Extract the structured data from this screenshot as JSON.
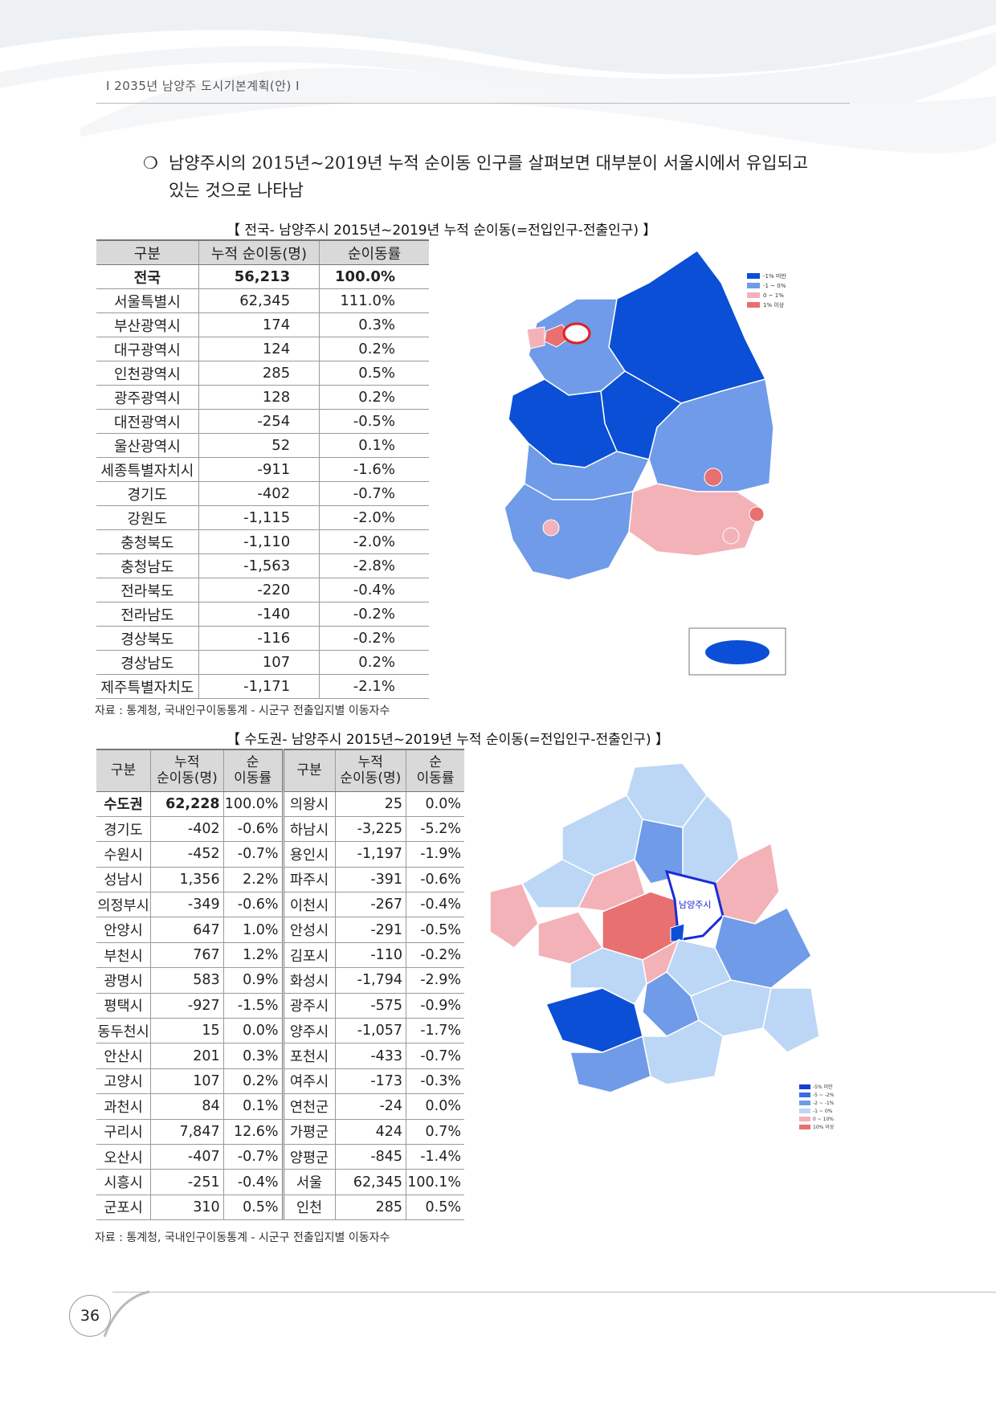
{
  "header": {
    "text": "Ⅰ 2035년 남양주 도시기본계획(안) Ⅰ"
  },
  "intro": {
    "bullet": "❍",
    "line1": "남양주시의 2015년~2019년 누적 순이동 인구를 살펴보면 대부분이 서울시에서 유입되고",
    "line2": "있는 것으로 나타남"
  },
  "national": {
    "caption": "【 전국- 남양주시 2015년~2019년 누적 순이동(=전입인구-전출인구) 】",
    "headers": [
      "구분",
      "누적 순이동(명)",
      "순이동률"
    ],
    "rows": [
      [
        "전국",
        "56,213",
        "100.0%"
      ],
      [
        "서울특별시",
        "62,345",
        "111.0%"
      ],
      [
        "부산광역시",
        "174",
        "0.3%"
      ],
      [
        "대구광역시",
        "124",
        "0.2%"
      ],
      [
        "인천광역시",
        "285",
        "0.5%"
      ],
      [
        "광주광역시",
        "128",
        "0.2%"
      ],
      [
        "대전광역시",
        "-254",
        "-0.5%"
      ],
      [
        "울산광역시",
        "52",
        "0.1%"
      ],
      [
        "세종특별자치시",
        "-911",
        "-1.6%"
      ],
      [
        "경기도",
        "-402",
        "-0.7%"
      ],
      [
        "강원도",
        "-1,115",
        "-2.0%"
      ],
      [
        "충청북도",
        "-1,110",
        "-2.0%"
      ],
      [
        "충청남도",
        "-1,563",
        "-2.8%"
      ],
      [
        "전라북도",
        "-220",
        "-0.4%"
      ],
      [
        "전라남도",
        "-140",
        "-0.2%"
      ],
      [
        "경상북도",
        "-116",
        "-0.2%"
      ],
      [
        "경상남도",
        "107",
        "0.2%"
      ],
      [
        "제주특별자치도",
        "-1,171",
        "-2.1%"
      ]
    ],
    "source": "자료 : 통계청, 국내인구이동통계 - 시군구 전출입지별 이동자수",
    "map_legend": [
      "-1% 미만",
      "-1 ~ 0%",
      "0 ~ 1%",
      "1% 이상"
    ],
    "map_colors": {
      "dark": "#0b4fd6",
      "mid": "#6f9be8",
      "light": "#a9c6f2",
      "pink": "#f3b2b8",
      "red": "#e87070"
    }
  },
  "capital": {
    "caption": "【 수도권- 남양주시 2015년~2019년 누적 순이동(=전입인구-전출인구) 】",
    "headers": [
      "구분",
      "누적\n순이동(명)",
      "순\n이동률",
      "구분",
      "누적\n순이동(명)",
      "순\n이동률"
    ],
    "h_name": "구분",
    "h_count_1": "누적",
    "h_count_2": "순이동(명)",
    "h_rate_1": "순",
    "h_rate_2": "이동률",
    "rows": [
      [
        "수도권",
        "62,228",
        "100.0%",
        "의왕시",
        "25",
        "0.0%"
      ],
      [
        "경기도",
        "-402",
        "-0.6%",
        "하남시",
        "-3,225",
        "-5.2%"
      ],
      [
        "수원시",
        "-452",
        "-0.7%",
        "용인시",
        "-1,197",
        "-1.9%"
      ],
      [
        "성남시",
        "1,356",
        "2.2%",
        "파주시",
        "-391",
        "-0.6%"
      ],
      [
        "의정부시",
        "-349",
        "-0.6%",
        "이천시",
        "-267",
        "-0.4%"
      ],
      [
        "안양시",
        "647",
        "1.0%",
        "안성시",
        "-291",
        "-0.5%"
      ],
      [
        "부천시",
        "767",
        "1.2%",
        "김포시",
        "-110",
        "-0.2%"
      ],
      [
        "광명시",
        "583",
        "0.9%",
        "화성시",
        "-1,794",
        "-2.9%"
      ],
      [
        "평택시",
        "-927",
        "-1.5%",
        "광주시",
        "-575",
        "-0.9%"
      ],
      [
        "동두천시",
        "15",
        "0.0%",
        "양주시",
        "-1,057",
        "-1.7%"
      ],
      [
        "안산시",
        "201",
        "0.3%",
        "포천시",
        "-433",
        "-0.7%"
      ],
      [
        "고양시",
        "107",
        "0.2%",
        "여주시",
        "-173",
        "-0.3%"
      ],
      [
        "과천시",
        "84",
        "0.1%",
        "연천군",
        "-24",
        "0.0%"
      ],
      [
        "구리시",
        "7,847",
        "12.6%",
        "가평군",
        "424",
        "0.7%"
      ],
      [
        "오산시",
        "-407",
        "-0.7%",
        "양평군",
        "-845",
        "-1.4%"
      ],
      [
        "시흥시",
        "-251",
        "-0.4%",
        "서울",
        "62,345",
        "100.1%"
      ],
      [
        "군포시",
        "310",
        "0.5%",
        "인천",
        "285",
        "0.5%"
      ]
    ],
    "source": "자료 : 통계청, 국내인구이동통계 - 시군구 전출입지별 이동자수",
    "map_legend": [
      "-5% 미만",
      "-5 ~ -2%",
      "-2 ~ -1%",
      "-1 ~ 0%",
      "0 ~ 10%",
      "10% 이상"
    ],
    "map_label": "남양주시"
  },
  "page_number": "36"
}
